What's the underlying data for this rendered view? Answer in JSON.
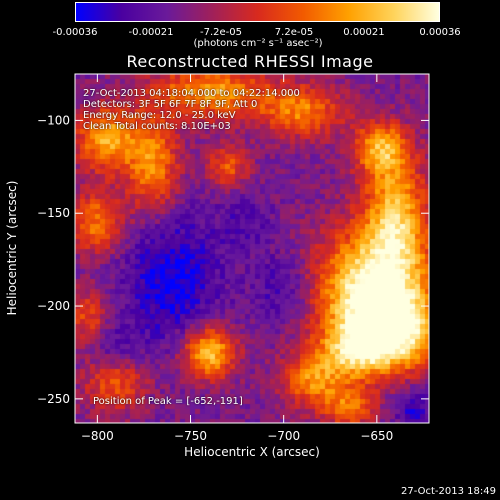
{
  "colorbar": {
    "ticks": [
      "-0.00036",
      "-0.00021",
      "-7.2e-05",
      "7.2e-05",
      "0.00021",
      "0.00036"
    ],
    "tick_values": [
      -0.00036,
      -0.00021,
      -7.2e-05,
      7.2e-05,
      0.00021,
      0.00036
    ],
    "range": [
      -0.00036,
      0.00036
    ],
    "units": "(photons cm⁻² s⁻¹ asec⁻²)"
  },
  "chart_data": {
    "type": "heatmap",
    "title": "Reconstructed RHESSI Image",
    "xlabel": "Heliocentric X (arcsec)",
    "ylabel": "Heliocentric Y (arcsec)",
    "xlim": [
      -812,
      -622
    ],
    "ylim": [
      -263,
      -75
    ],
    "xticks": [
      -800,
      -750,
      -700,
      -650
    ],
    "yticks": [
      -100,
      -150,
      -200,
      -250
    ],
    "colormap": [
      "#0000ff",
      "#4a00a0",
      "#6a1a9a",
      "#a0205a",
      "#d82a1e",
      "#f25a00",
      "#ffa000",
      "#ffd35a",
      "#ffffe0"
    ],
    "peak": [
      -652,
      -191
    ],
    "blobs": [
      {
        "x": -652,
        "y": -191,
        "sx": 22,
        "sy": 22,
        "a": 1.0
      },
      {
        "x": -640,
        "y": -215,
        "sx": 18,
        "sy": 14,
        "a": 0.75
      },
      {
        "x": -662,
        "y": -225,
        "sx": 14,
        "sy": 10,
        "a": 0.55
      },
      {
        "x": -640,
        "y": -150,
        "sx": 12,
        "sy": 22,
        "a": 0.7
      },
      {
        "x": -648,
        "y": -115,
        "sx": 10,
        "sy": 10,
        "a": 0.65
      },
      {
        "x": -690,
        "y": -95,
        "sx": 16,
        "sy": 10,
        "a": 0.55
      },
      {
        "x": -740,
        "y": -85,
        "sx": 22,
        "sy": 10,
        "a": 0.65
      },
      {
        "x": -795,
        "y": -110,
        "sx": 12,
        "sy": 12,
        "a": 0.7
      },
      {
        "x": -770,
        "y": -125,
        "sx": 10,
        "sy": 18,
        "a": 0.6
      },
      {
        "x": -800,
        "y": -155,
        "sx": 10,
        "sy": 12,
        "a": 0.55
      },
      {
        "x": -730,
        "y": -125,
        "sx": 8,
        "sy": 8,
        "a": 0.45
      },
      {
        "x": -740,
        "y": -225,
        "sx": 10,
        "sy": 10,
        "a": 0.8
      },
      {
        "x": -685,
        "y": -240,
        "sx": 12,
        "sy": 10,
        "a": 0.55
      },
      {
        "x": -665,
        "y": -255,
        "sx": 10,
        "sy": 8,
        "a": 0.5
      },
      {
        "x": -790,
        "y": -240,
        "sx": 12,
        "sy": 12,
        "a": 0.5
      },
      {
        "x": -805,
        "y": -205,
        "sx": 8,
        "sy": 10,
        "a": 0.4
      }
    ],
    "dips": [
      {
        "x": -760,
        "y": -185,
        "sx": 18,
        "sy": 25,
        "a": 0.55
      },
      {
        "x": -790,
        "y": -225,
        "sx": 10,
        "sy": 10,
        "a": 0.4
      },
      {
        "x": -700,
        "y": -190,
        "sx": 12,
        "sy": 14,
        "a": 0.35
      },
      {
        "x": -630,
        "y": -255,
        "sx": 8,
        "sy": 8,
        "a": 0.4
      },
      {
        "x": -720,
        "y": -155,
        "sx": 10,
        "sy": 10,
        "a": 0.25
      }
    ]
  },
  "annotations": {
    "time_range": "27-Oct-2013 04:18:04.000 to 04:22:14.000",
    "detectors": "Detectors: 3F 5F 6F 7F 8F 9F, Att 0",
    "energy": "Energy Range: 12.0 - 25.0 keV",
    "clean": "Clean     Total counts: 8.10E+03",
    "peak_label": "Position of Peak = [-652,-191]"
  },
  "footer": {
    "timestamp": "27-Oct-2013 18:49"
  }
}
